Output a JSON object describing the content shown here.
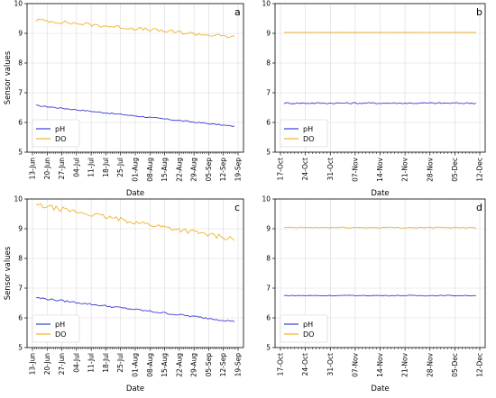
{
  "colors": {
    "pH": "#3b3bd6",
    "DO": "#f0b22a"
  },
  "chart_data": [
    {
      "panel": "a",
      "type": "line",
      "xlabel": "Date",
      "ylabel": "Sensor values",
      "ylim": [
        5,
        10
      ],
      "yticks": [
        "5",
        "6",
        "7",
        "8",
        "9",
        "10"
      ],
      "xticks": [
        "13-Jun",
        "20-Jun",
        "27-Jun",
        "04-Jul",
        "11-Jul",
        "18-Jul",
        "25-Jul",
        "01-Aug",
        "08-Aug",
        "15-Aug",
        "22-Aug",
        "29-Aug",
        "05-Sep",
        "12-Sep",
        "19-Sep"
      ],
      "x_first_label": "15-Jun",
      "x_last_label": "15-Sep",
      "legend": {
        "placement": "lower-left",
        "entries": [
          "pH",
          "DO"
        ]
      },
      "grid": true,
      "series": [
        {
          "name": "pH",
          "start": 6.57,
          "end": 5.87,
          "noise": 0.02
        },
        {
          "name": "DO",
          "start": 9.45,
          "end": 8.87,
          "noise": 0.06
        }
      ]
    },
    {
      "panel": "b",
      "type": "line",
      "xlabel": "Date",
      "ylabel": "",
      "ylim": [
        5,
        10
      ],
      "yticks": [
        "5",
        "6",
        "7",
        "8",
        "9",
        "10"
      ],
      "xticks": [
        "17-Oct",
        "24-Oct",
        "31-Oct",
        "07-Nov",
        "14-Nov",
        "21-Nov",
        "28-Nov",
        "05-Dec",
        "12-Dec"
      ],
      "x_first_label": "15-Oct",
      "x_last_label": "17-Dec",
      "legend": {
        "placement": "lower-left",
        "entries": [
          "pH",
          "DO"
        ]
      },
      "grid": true,
      "series": [
        {
          "name": "pH",
          "start": 6.65,
          "end": 6.65,
          "noise": 0.025
        },
        {
          "name": "DO",
          "start": 9.03,
          "end": 9.03,
          "noise": 0.004
        }
      ]
    },
    {
      "panel": "c",
      "type": "line",
      "xlabel": "Date",
      "ylabel": "Sensor values",
      "ylim": [
        5,
        10
      ],
      "yticks": [
        "5",
        "6",
        "7",
        "8",
        "9",
        "10"
      ],
      "xticks": [
        "13-Jun",
        "20-Jun",
        "27-Jun",
        "04-Jul",
        "11-Jul",
        "18-Jul",
        "25-Jul",
        "01-Aug",
        "08-Aug",
        "15-Aug",
        "22-Aug",
        "29-Aug",
        "05-Sep",
        "12-Sep",
        "19-Sep"
      ],
      "x_first_label": "15-Jun",
      "x_last_label": "15-Sep",
      "legend": {
        "placement": "lower-left",
        "entries": [
          "pH",
          "DO"
        ]
      },
      "grid": true,
      "series": [
        {
          "name": "pH",
          "start": 6.68,
          "end": 5.88,
          "noise": 0.03
        },
        {
          "name": "DO",
          "start": 9.8,
          "end": 8.65,
          "noise": 0.08
        }
      ]
    },
    {
      "panel": "d",
      "type": "line",
      "xlabel": "Date",
      "ylabel": "",
      "ylim": [
        5,
        10
      ],
      "yticks": [
        "5",
        "6",
        "7",
        "8",
        "9",
        "10"
      ],
      "xticks": [
        "17-Oct",
        "24-Oct",
        "31-Oct",
        "07-Nov",
        "14-Nov",
        "21-Nov",
        "28-Nov",
        "05-Dec",
        "12-Dec"
      ],
      "x_first_label": "15-Oct",
      "x_last_label": "17-Dec",
      "legend": {
        "placement": "lower-left",
        "entries": [
          "pH",
          "DO"
        ]
      },
      "grid": true,
      "series": [
        {
          "name": "pH",
          "start": 6.75,
          "end": 6.75,
          "noise": 0.015
        },
        {
          "name": "DO",
          "start": 9.04,
          "end": 9.04,
          "noise": 0.02
        }
      ]
    }
  ]
}
